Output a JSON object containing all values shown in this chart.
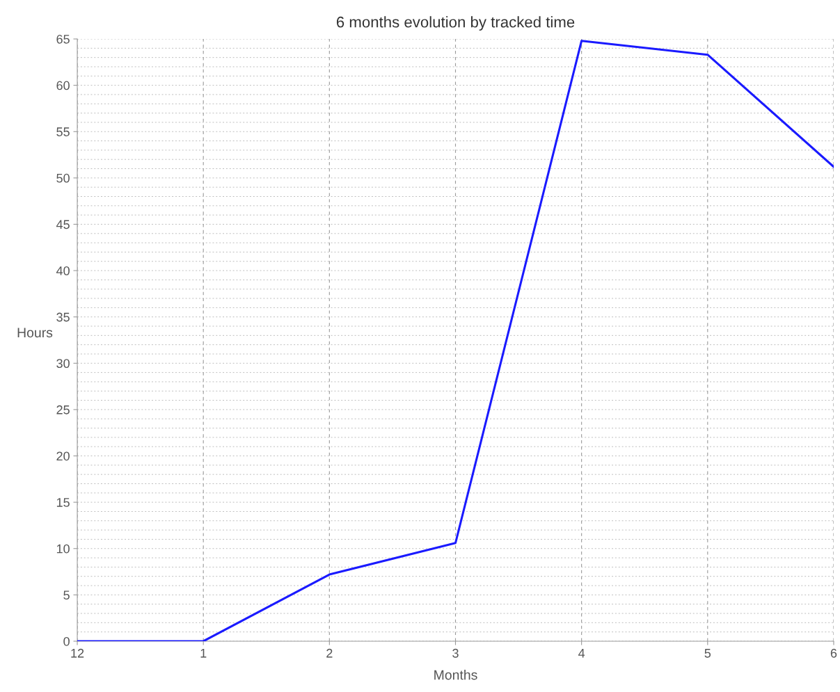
{
  "chart_data": {
    "type": "line",
    "title": "6 months evolution by tracked time",
    "xlabel": "Months",
    "ylabel": "Hours",
    "categories": [
      "12",
      "1",
      "2",
      "3",
      "4",
      "5",
      "6"
    ],
    "series": [
      {
        "color": "#1a1aff",
        "values": [
          0,
          0,
          7.2,
          10.6,
          64.8,
          63.3,
          51.2
        ]
      }
    ],
    "ylim": [
      0,
      65
    ],
    "yticks": [
      0,
      5,
      10,
      15,
      20,
      25,
      30,
      35,
      40,
      45,
      50,
      55,
      60,
      65
    ],
    "grid": true,
    "marker": "none",
    "line_style": "solid"
  }
}
